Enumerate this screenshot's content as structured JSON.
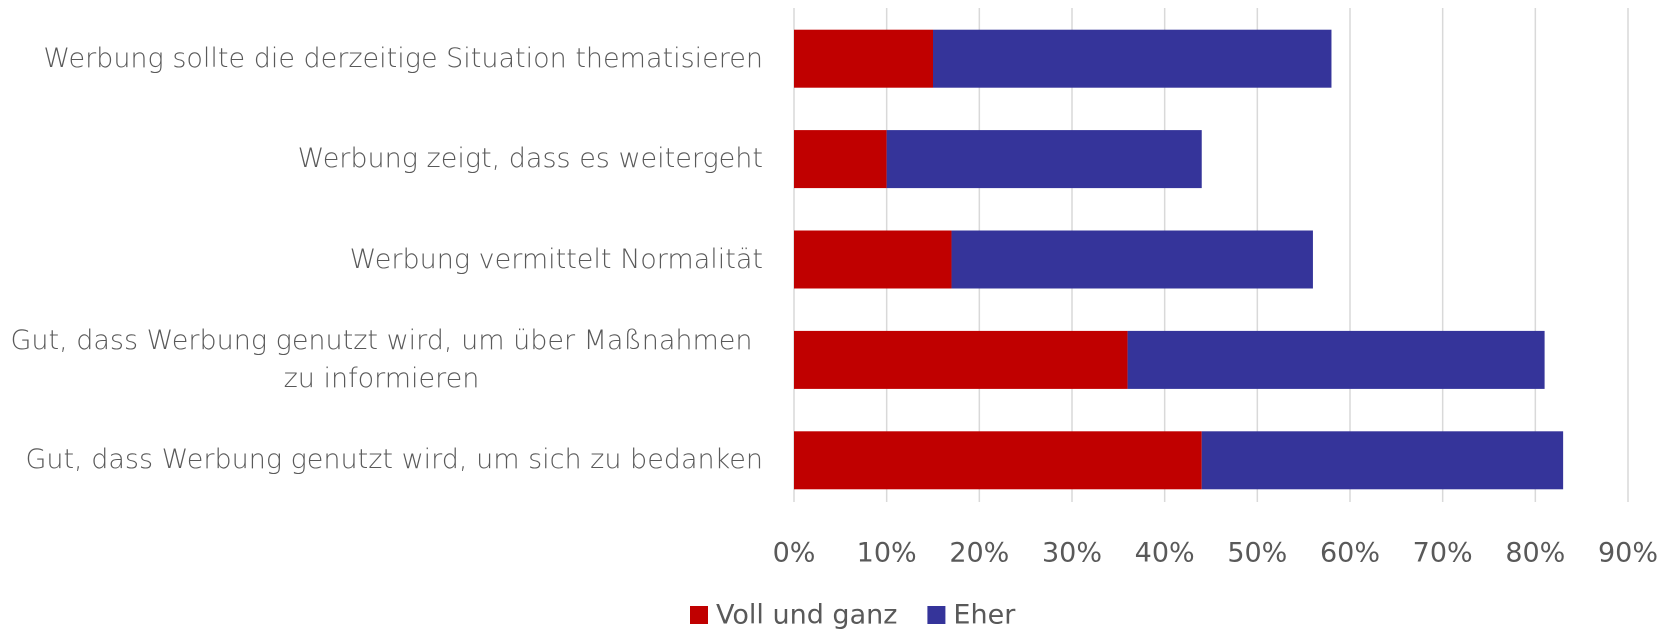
{
  "chart_data": {
    "type": "bar",
    "orientation": "horizontal",
    "stacked": true,
    "categories": [
      "Werbung sollte die derzeitige Situation thematisieren",
      "Werbung zeigt, dass es weitergeht",
      "Werbung vermittelt Normalität",
      "Gut, dass Werbung genutzt wird, um über Maßnahmen zu informieren",
      "Gut, dass Werbung genutzt wird, um sich zu bedanken"
    ],
    "series": [
      {
        "name": "Voll und ganz",
        "color": "#c00000",
        "values": [
          15,
          10,
          17,
          36,
          44
        ]
      },
      {
        "name": "Eher",
        "color": "#35349a",
        "values": [
          43,
          34,
          39,
          45,
          39
        ]
      }
    ],
    "xlim": [
      0,
      90
    ],
    "xticks": [
      {
        "value": 0,
        "label": "0%"
      },
      {
        "value": 10,
        "label": "10%"
      },
      {
        "value": 20,
        "label": "20%"
      },
      {
        "value": 30,
        "label": "30%"
      },
      {
        "value": 40,
        "label": "40%"
      },
      {
        "value": 50,
        "label": "50%"
      },
      {
        "value": 60,
        "label": "60%"
      },
      {
        "value": 70,
        "label": "70%"
      },
      {
        "value": 80,
        "label": "80%"
      },
      {
        "value": 90,
        "label": "90%"
      }
    ],
    "grid": true,
    "legend": "bottom"
  }
}
